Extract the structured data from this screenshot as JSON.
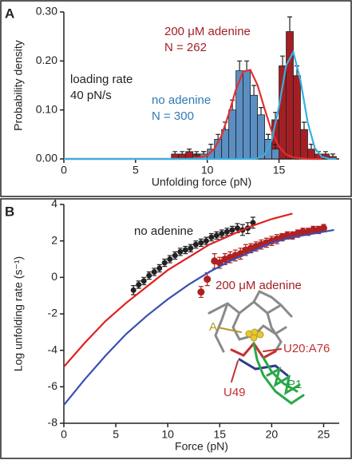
{
  "chart_data": [
    {
      "type": "histogram",
      "panel_label": "A",
      "xlabel": "Unfolding force (pN)",
      "ylabel": "Probability density",
      "xlim": [
        0,
        19.2
      ],
      "xticks": [
        0,
        5,
        10,
        15
      ],
      "ylim": [
        0,
        0.3
      ],
      "yticks": [
        {
          "value": 0,
          "label": "0.00"
        },
        {
          "value": 0.1,
          "label": "0.10"
        },
        {
          "value": 0.2,
          "label": "0.20"
        },
        {
          "value": 0.3,
          "label": "0.30"
        }
      ],
      "bins": [
        7.5,
        8,
        8.5,
        9,
        9.5,
        10,
        10.5,
        11,
        11.5,
        12,
        12.5,
        13,
        13.5,
        14,
        14.5,
        15,
        15.5,
        16,
        16.5,
        17,
        17.5,
        18,
        18.5,
        19
      ],
      "series": [
        {
          "color": "#a31f24",
          "values": [
            0.01,
            0.01,
            0.015,
            0.01,
            0.01,
            0.01,
            0.015,
            0.02,
            0.03,
            0.03,
            0.02,
            0.02,
            0.01,
            0.04,
            0.08,
            0.19,
            0.26,
            0.17,
            0.06,
            0.02,
            0.01,
            0.01,
            0.005
          ],
          "errors": [
            0.005,
            0.005,
            0.005,
            0.005,
            0.005,
            0.005,
            0.005,
            0.01,
            0.01,
            0.01,
            0.01,
            0.01,
            0.005,
            0.01,
            0.015,
            0.02,
            0.03,
            0.02,
            0.015,
            0.01,
            0.005,
            0.005,
            0.005
          ]
        },
        {
          "color": "#5b8fc4",
          "values": [
            0,
            0,
            0,
            0.005,
            0.01,
            0.02,
            0.04,
            0.06,
            0.1,
            0.18,
            0.18,
            0.13,
            0.09,
            0.04,
            0.02,
            0,
            0,
            0,
            0,
            0,
            0,
            0,
            0
          ],
          "errors": [
            0,
            0,
            0,
            0.005,
            0.005,
            0.01,
            0.01,
            0.015,
            0.02,
            0.02,
            0.02,
            0.02,
            0.015,
            0.01,
            0.01,
            0,
            0,
            0,
            0,
            0,
            0,
            0,
            0
          ]
        }
      ],
      "fits": [
        {
          "color": "#e03030",
          "x": [
            0,
            7,
            8,
            9,
            10,
            10.5,
            11,
            11.5,
            12,
            12.5,
            13,
            13.5,
            14,
            14.5,
            15,
            15.5,
            16,
            17,
            18
          ],
          "values": [
            0,
            0,
            0,
            0.0005,
            0.007,
            0.021,
            0.048,
            0.092,
            0.142,
            0.178,
            0.182,
            0.151,
            0.102,
            0.056,
            0.025,
            0.009,
            0.003,
            0,
            0
          ]
        },
        {
          "color": "#38b0e0",
          "x": [
            0,
            12,
            13,
            13.5,
            14,
            14.5,
            15,
            15.5,
            16,
            16.5,
            17,
            17.5,
            18,
            18.5,
            19
          ],
          "values": [
            0,
            0,
            0.0001,
            0.0013,
            0.009,
            0.039,
            0.107,
            0.191,
            0.218,
            0.16,
            0.075,
            0.022,
            0.004,
            0.0005,
            0
          ]
        }
      ],
      "annotations": [
        {
          "lines": [
            "loading rate",
            "40 pN/s"
          ],
          "color": "#222222"
        },
        {
          "lines": [
            "no adenine",
            "N = 300"
          ],
          "color": "#2f7ab5"
        },
        {
          "lines": [
            "200 μM adenine",
            "N = 262"
          ],
          "color": "#a31f24"
        }
      ]
    },
    {
      "type": "scatter",
      "panel_label": "B",
      "xlabel": "Force (pN)",
      "ylabel": "Log unfolding rate (s⁻¹)",
      "xlim": [
        0,
        26.5
      ],
      "xticks": [
        0,
        5,
        10,
        15,
        20,
        25
      ],
      "ylim": [
        -8,
        4
      ],
      "yticks": [
        -8,
        -6,
        -4,
        -2,
        0,
        2,
        4
      ],
      "series": [
        {
          "color": "#222222",
          "x": [
            6.7,
            7.2,
            7.7,
            8.2,
            8.7,
            9.2,
            9.7,
            10.2,
            10.7,
            11.2,
            11.7,
            12.2,
            12.7,
            13.2,
            13.7,
            14.2,
            14.7,
            15.2,
            15.7,
            16.2,
            16.7,
            17.2,
            17.7,
            18.2
          ],
          "values": [
            -0.7,
            -0.4,
            -0.2,
            0.1,
            0.3,
            0.5,
            0.8,
            1.0,
            1.2,
            1.4,
            1.5,
            1.6,
            1.8,
            1.9,
            2.0,
            2.2,
            2.3,
            2.4,
            2.5,
            2.6,
            2.7,
            2.6,
            2.7,
            3.0
          ],
          "errors": [
            0.25,
            0.2,
            0.2,
            0.2,
            0.2,
            0.2,
            0.2,
            0.2,
            0.2,
            0.2,
            0.2,
            0.2,
            0.2,
            0.2,
            0.2,
            0.2,
            0.2,
            0.2,
            0.2,
            0.2,
            0.25,
            0.3,
            0.3,
            0.3
          ]
        },
        {
          "color": "#b02020",
          "x": [
            13.2,
            13.8,
            14.5,
            15,
            15.5,
            16,
            16.5,
            17,
            17.5,
            18,
            18.5,
            19,
            19.5,
            20,
            20.5,
            21,
            21.5,
            22,
            22.5,
            23,
            23.5,
            24,
            24.5,
            25
          ],
          "values": [
            -0.8,
            -0.1,
            0.9,
            0.8,
            1.0,
            1.1,
            1.2,
            1.3,
            1.5,
            1.6,
            1.7,
            1.8,
            1.9,
            2.0,
            2.1,
            2.2,
            2.3,
            2.3,
            2.4,
            2.5,
            2.5,
            2.6,
            2.6,
            2.7
          ],
          "errors": [
            0.3,
            0.35,
            0.4,
            0.3,
            0.3,
            0.3,
            0.3,
            0.3,
            0.3,
            0.25,
            0.25,
            0.25,
            0.25,
            0.25,
            0.25,
            0.2,
            0.2,
            0.2,
            0.2,
            0.2,
            0.2,
            0.2,
            0.2,
            0.2
          ]
        }
      ],
      "fits": [
        {
          "color": "#e02020",
          "x": [
            0,
            2,
            4,
            6,
            8,
            10,
            12,
            14,
            16,
            18,
            20,
            22
          ],
          "values": [
            -4.9,
            -3.6,
            -2.4,
            -1.4,
            -0.5,
            0.4,
            1.1,
            1.8,
            2.3,
            2.8,
            3.2,
            3.5
          ]
        },
        {
          "color": "#3a4fb0",
          "x": [
            0,
            2,
            4,
            6,
            8,
            10,
            12,
            14,
            16,
            18,
            20,
            22,
            24,
            26
          ],
          "values": [
            -7,
            -5.6,
            -4.3,
            -3.1,
            -2.1,
            -1.2,
            -0.4,
            0.3,
            0.9,
            1.4,
            1.9,
            2.2,
            2.4,
            2.6
          ]
        }
      ],
      "annotations": [
        {
          "lines": [
            "no adenine"
          ],
          "color": "#222222"
        },
        {
          "lines": [
            "200 μM adenine"
          ],
          "color": "#a31f24"
        },
        {
          "lines": [
            "A"
          ],
          "color": "#b09a20"
        },
        {
          "lines": [
            "U20:A76"
          ],
          "color": "#c03030"
        },
        {
          "lines": [
            "U49"
          ],
          "color": "#c03030"
        },
        {
          "lines": [
            "P1"
          ],
          "color": "#20a040"
        }
      ]
    }
  ]
}
